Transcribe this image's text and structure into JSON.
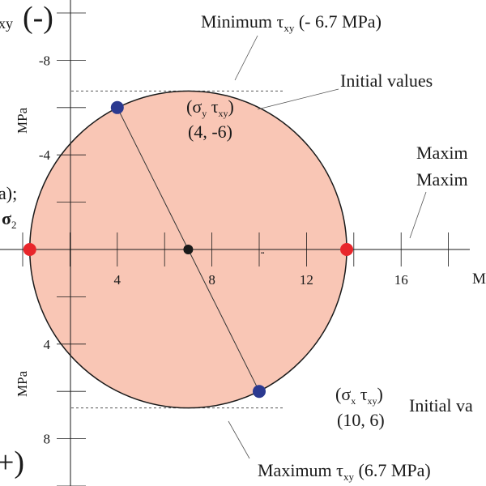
{
  "diagram": {
    "sign_negative": "(-)",
    "sign_positive": "+)",
    "axis_label_tau_fragment": "xy",
    "axis_unit_upper": "MPa",
    "axis_unit_lower": "MPa",
    "x_axis_unit_fragment": "M",
    "x_ticks": [
      {
        "value": 4,
        "label": "4"
      },
      {
        "value": 8,
        "label": "8"
      },
      {
        "value": 12,
        "label": "12"
      },
      {
        "value": 16,
        "label": "16"
      }
    ],
    "y_ticks": [
      {
        "value": -8,
        "label": "-8"
      },
      {
        "value": -4,
        "label": "-4"
      },
      {
        "value": 4,
        "label": "4"
      },
      {
        "value": 8,
        "label": "8"
      }
    ],
    "circle": {
      "center": 7,
      "radius": 6.7,
      "fill": "#f9c6b5",
      "stroke": "#1a1a1a"
    },
    "points": {
      "initial_y": {
        "sigma": 4,
        "tau": -6,
        "color": "#2b3990"
      },
      "initial_x": {
        "sigma": 10,
        "tau": 6,
        "color": "#2b3990"
      },
      "sigma_min": {
        "sigma": 0.3,
        "tau": 0,
        "color": "#e8262b"
      },
      "sigma_max": {
        "sigma": 13.7,
        "tau": 0,
        "color": "#e8262b"
      },
      "center": {
        "sigma": 7,
        "tau": 0,
        "color": "#1a1a1a"
      }
    },
    "labels": {
      "min_tau": {
        "prefix": "Minimum τ",
        "sub": "xy",
        "suffix": " (- 6.7 MPa)"
      },
      "max_tau": {
        "prefix": "Maximum τ",
        "sub": "xy",
        "suffix": " (6.7 MPa)"
      },
      "initial_values_top": "Initial values",
      "initial_values_bottom": "Initial va",
      "point_y_pair": {
        "s": "σ",
        "s_sub": "y",
        "t": "τ",
        "t_sub": "xy"
      },
      "point_y_coords": "(4, -6)",
      "point_x_pair": {
        "s": "σ",
        "s_sub": "x",
        "t": "τ",
        "t_sub": "xy"
      },
      "point_x_coords": "(10, 6)",
      "maxim_line1": "Maxim",
      "maxim_line2": "Maxim",
      "left_fragment": "a);",
      "sigma2": {
        "s": "σ",
        "sub": "2"
      }
    }
  }
}
